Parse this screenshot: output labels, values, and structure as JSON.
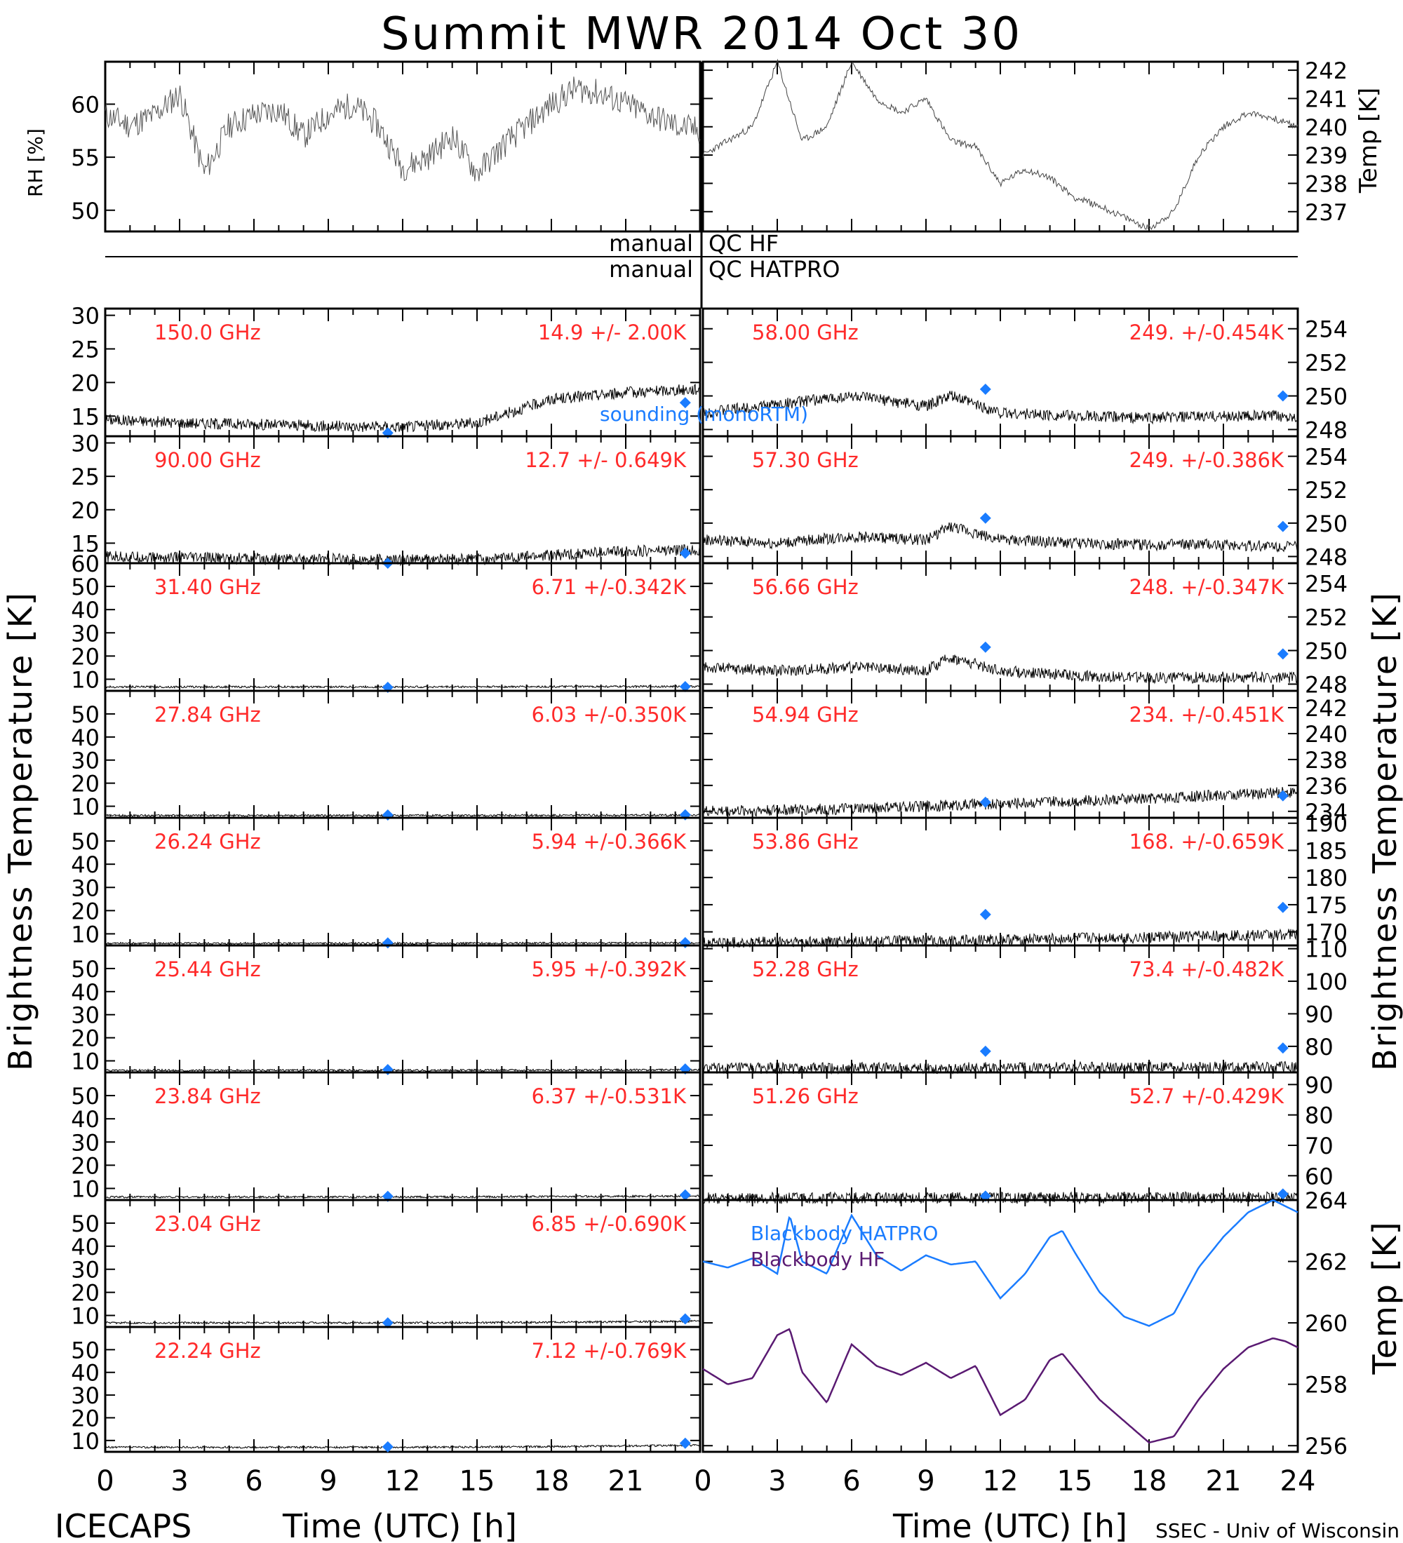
{
  "title": "Summit MWR 2014 Oct 30",
  "footer": {
    "left": "ICECAPS",
    "right": "SSEC - Univ of Wisconsin",
    "xlabel_left": "Time (UTC) [h]",
    "xlabel_right": "Time (UTC) [h]"
  },
  "side_labels": {
    "left_brightness": "Brightness Temperature [K]",
    "right_brightness": "Brightness Temperature [K]",
    "rh": "RH [%]",
    "temp": "Temp [K]",
    "bb_temp": "Temp [K]"
  },
  "qc": {
    "left1": "manual",
    "right1": "QC HF",
    "left2": "manual",
    "right2": "QC HATPRO"
  },
  "colors": {
    "channel_label": "#ff2a2a",
    "sounding": "#1a7cff",
    "hatpro": "#1a7cff",
    "hf": "#5a1a72",
    "trace": "#000000"
  },
  "legend": {
    "sounding": "sounding (monoRTM)",
    "bb_hatpro": "Blackbody HATPRO",
    "bb_hf": "Blackbody HF"
  },
  "chart_data": [
    {
      "type": "line",
      "panel": "rh",
      "ylabel": "RH [%]",
      "ylim": [
        48,
        64
      ],
      "yticks": [
        "50",
        "55",
        "60"
      ],
      "x": [
        0,
        1,
        2,
        3,
        4,
        5,
        6,
        7,
        8,
        9,
        10,
        11,
        12,
        13,
        14,
        15,
        16,
        17,
        18,
        19,
        20,
        21,
        22,
        23,
        24
      ],
      "values": [
        59,
        58,
        59,
        61,
        53.5,
        58,
        59,
        59.5,
        57,
        59,
        60,
        58,
        54,
        55,
        57,
        53.5,
        56,
        58,
        60,
        61.5,
        61,
        60,
        59,
        58,
        57.5
      ]
    },
    {
      "type": "line",
      "panel": "temp",
      "ylabel": "Temp [K]",
      "ylim": [
        236.3,
        242.3
      ],
      "yticks": [
        "237",
        "238",
        "239",
        "240",
        "241",
        "242"
      ],
      "x": [
        0,
        1,
        2,
        3,
        4,
        5,
        6,
        7,
        8,
        9,
        10,
        11,
        12,
        13,
        14,
        15,
        16,
        17,
        18,
        19,
        20,
        21,
        22,
        23,
        24
      ],
      "values": [
        239,
        239.5,
        240,
        242.3,
        239.5,
        240,
        242.3,
        241,
        240.5,
        241,
        239.5,
        239.3,
        238,
        238.5,
        238.2,
        237.5,
        237.2,
        236.8,
        236.4,
        237,
        239,
        240,
        240.5,
        240.3,
        240
      ]
    },
    {
      "type": "line",
      "side": "left",
      "channel": "150.0 GHz",
      "stat": "14.9 +/-  2.00K",
      "ylim": [
        12,
        31
      ],
      "yticks": [
        "15",
        "20",
        "25",
        "30"
      ],
      "x": [
        0,
        3,
        6,
        9,
        12,
        15,
        18,
        21,
        24
      ],
      "values": [
        14.5,
        14,
        13.8,
        13.5,
        13.4,
        14,
        17.5,
        18.5,
        19
      ],
      "sounding": [
        [
          11.4,
          12.5
        ],
        [
          23.4,
          17
        ]
      ]
    },
    {
      "type": "line",
      "side": "left",
      "channel": "90.00 GHz",
      "stat": "12.7 +/- 0.649K",
      "ylim": [
        12,
        31
      ],
      "yticks": [
        "15",
        "20",
        "25",
        "30"
      ],
      "x": [
        0,
        3,
        6,
        9,
        12,
        15,
        18,
        21,
        24
      ],
      "values": [
        13,
        12.8,
        12.7,
        12.6,
        12.5,
        12.6,
        13.2,
        13.8,
        14
      ],
      "sounding": [
        [
          11.4,
          12
        ],
        [
          23.4,
          13.5
        ]
      ]
    },
    {
      "type": "line",
      "side": "left",
      "channel": "31.40 GHz",
      "stat": "6.71 +/-0.342K",
      "ylim": [
        5,
        60
      ],
      "yticks": [
        "10",
        "20",
        "30",
        "40",
        "50",
        "60"
      ],
      "x": [
        0,
        6,
        12,
        18,
        24
      ],
      "values": [
        6.7,
        6.7,
        6.7,
        6.8,
        6.9
      ],
      "sounding": [
        [
          11.4,
          6.5
        ],
        [
          23.4,
          6.8
        ]
      ]
    },
    {
      "type": "line",
      "side": "left",
      "channel": "27.84 GHz",
      "stat": "6.03 +/-0.350K",
      "ylim": [
        5,
        60
      ],
      "yticks": [
        "10",
        "20",
        "30",
        "40",
        "50"
      ],
      "x": [
        0,
        6,
        12,
        18,
        24
      ],
      "values": [
        6,
        6,
        6,
        6.1,
        6.2
      ],
      "sounding": [
        [
          11.4,
          6.2
        ],
        [
          23.4,
          6.3
        ]
      ]
    },
    {
      "type": "line",
      "side": "left",
      "channel": "26.24 GHz",
      "stat": "5.94 +/-0.366K",
      "ylim": [
        5,
        60
      ],
      "yticks": [
        "10",
        "20",
        "30",
        "40",
        "50"
      ],
      "x": [
        0,
        6,
        12,
        18,
        24
      ],
      "values": [
        5.9,
        5.9,
        5.9,
        6,
        6.1
      ],
      "sounding": [
        [
          11.4,
          6.1
        ],
        [
          23.4,
          6.2
        ]
      ]
    },
    {
      "type": "line",
      "side": "left",
      "channel": "25.44 GHz",
      "stat": "5.95 +/-0.392K",
      "ylim": [
        5,
        60
      ],
      "yticks": [
        "10",
        "20",
        "30",
        "40",
        "50"
      ],
      "x": [
        0,
        6,
        12,
        18,
        24
      ],
      "values": [
        5.9,
        5.9,
        5.9,
        6,
        6.1
      ],
      "sounding": [
        [
          11.4,
          6.2
        ],
        [
          23.4,
          6.5
        ]
      ]
    },
    {
      "type": "line",
      "side": "left",
      "channel": "23.84 GHz",
      "stat": "6.37 +/-0.531K",
      "ylim": [
        5,
        60
      ],
      "yticks": [
        "10",
        "20",
        "30",
        "40",
        "50"
      ],
      "x": [
        0,
        6,
        12,
        18,
        24
      ],
      "values": [
        6.3,
        6.3,
        6.3,
        6.5,
        6.7
      ],
      "sounding": [
        [
          11.4,
          6.6
        ],
        [
          23.4,
          7.2
        ]
      ]
    },
    {
      "type": "line",
      "side": "left",
      "channel": "23.04 GHz",
      "stat": "6.85 +/-0.690K",
      "ylim": [
        5,
        60
      ],
      "yticks": [
        "10",
        "20",
        "30",
        "40",
        "50"
      ],
      "x": [
        0,
        6,
        12,
        18,
        24
      ],
      "values": [
        6.8,
        6.8,
        6.8,
        7,
        7.5
      ],
      "sounding": [
        [
          11.4,
          6.8
        ],
        [
          23.4,
          8.5
        ]
      ]
    },
    {
      "type": "line",
      "side": "left",
      "channel": "22.24 GHz",
      "stat": "7.12 +/-0.769K",
      "ylim": [
        5,
        60
      ],
      "yticks": [
        "10",
        "20",
        "30",
        "40",
        "50"
      ],
      "x": [
        0,
        6,
        12,
        18,
        24
      ],
      "values": [
        7,
        7,
        7,
        7.3,
        7.9
      ],
      "sounding": [
        [
          11.4,
          7.2
        ],
        [
          23.4,
          8.8
        ]
      ]
    },
    {
      "type": "line",
      "side": "right",
      "channel": "58.00 GHz",
      "stat": "249. +/-0.454K",
      "ylim": [
        247.6,
        255.2
      ],
      "yticks": [
        "248",
        "250",
        "252",
        "254"
      ],
      "x": [
        0,
        3,
        6,
        9,
        10,
        12,
        15,
        18,
        21,
        24
      ],
      "values": [
        249,
        249.5,
        250,
        249.4,
        250,
        249,
        248.8,
        248.7,
        248.8,
        248.8
      ],
      "sounding": [
        [
          11.4,
          250.4
        ],
        [
          23.4,
          250
        ]
      ]
    },
    {
      "type": "line",
      "side": "right",
      "channel": "57.30 GHz",
      "stat": "249. +/-0.386K",
      "ylim": [
        247.6,
        255.2
      ],
      "yticks": [
        "248",
        "250",
        "252",
        "254"
      ],
      "x": [
        0,
        3,
        6,
        9,
        10,
        12,
        15,
        18,
        21,
        24
      ],
      "values": [
        249,
        248.8,
        249.2,
        249,
        249.8,
        249,
        248.8,
        248.7,
        248.7,
        248.6
      ],
      "sounding": [
        [
          11.4,
          250.3
        ],
        [
          23.4,
          249.8
        ]
      ]
    },
    {
      "type": "line",
      "side": "right",
      "channel": "56.66 GHz",
      "stat": "248. +/-0.347K",
      "ylim": [
        247.6,
        255.2
      ],
      "yticks": [
        "248",
        "250",
        "252",
        "254"
      ],
      "x": [
        0,
        3,
        6,
        9,
        10,
        12,
        15,
        18,
        21,
        24
      ],
      "values": [
        249,
        248.8,
        249,
        248.8,
        249.6,
        248.8,
        248.5,
        248.4,
        248.4,
        248.4
      ],
      "sounding": [
        [
          11.4,
          250.2
        ],
        [
          23.4,
          249.8
        ]
      ]
    },
    {
      "type": "line",
      "side": "right",
      "channel": "54.94 GHz",
      "stat": "234. +/-0.451K",
      "ylim": [
        233.5,
        243.3
      ],
      "yticks": [
        "234",
        "236",
        "238",
        "240",
        "242"
      ],
      "x": [
        0,
        6,
        12,
        18,
        24
      ],
      "values": [
        234,
        234.2,
        234.6,
        235,
        235.5
      ],
      "sounding": [
        [
          11.4,
          234.7
        ],
        [
          23.4,
          235.2
        ]
      ]
    },
    {
      "type": "line",
      "side": "right",
      "channel": "53.86 GHz",
      "stat": "168. +/-0.659K",
      "ylim": [
        167.5,
        191
      ],
      "yticks": [
        "170",
        "175",
        "180",
        "185",
        "190"
      ],
      "x": [
        0,
        6,
        12,
        18,
        24
      ],
      "values": [
        168,
        168.2,
        168.5,
        169,
        169.5
      ],
      "sounding": [
        [
          11.4,
          173.2
        ],
        [
          23.4,
          174.5
        ]
      ]
    },
    {
      "type": "line",
      "side": "right",
      "channel": "52.28 GHz",
      "stat": "73.4 +/-0.482K",
      "ylim": [
        72,
        111
      ],
      "yticks": [
        "80",
        "90",
        "100",
        "110"
      ],
      "x": [
        0,
        6,
        12,
        18,
        24
      ],
      "values": [
        73.2,
        73.3,
        73.4,
        73.5,
        73.6
      ],
      "sounding": [
        [
          11.4,
          78.5
        ],
        [
          23.4,
          79.5
        ]
      ]
    },
    {
      "type": "line",
      "side": "right",
      "channel": "51.26 GHz",
      "stat": "52.7 +/-0.429K",
      "ylim": [
        52,
        94
      ],
      "yticks": [
        "60",
        "70",
        "80",
        "90"
      ],
      "x": [
        0,
        6,
        12,
        18,
        24
      ],
      "values": [
        52.6,
        52.7,
        52.7,
        52.8,
        52.9
      ],
      "sounding": [
        [
          11.4,
          53.3
        ],
        [
          23.4,
          54
        ]
      ]
    },
    {
      "type": "line",
      "panel": "blackbody",
      "ylabel": "Temp [K]",
      "ylim": [
        255.8,
        264
      ],
      "yticks": [
        "256",
        "258",
        "260",
        "262",
        "264"
      ],
      "series": [
        {
          "name": "Blackbody HATPRO",
          "x": [
            0,
            1,
            2,
            3,
            3.5,
            4,
            5,
            6,
            7,
            8,
            9,
            10,
            11,
            12,
            13,
            14,
            14.5,
            15,
            16,
            17,
            18,
            19,
            20,
            21,
            22,
            23,
            23.5,
            24
          ],
          "values": [
            262,
            261.8,
            262.1,
            261.6,
            263.5,
            262,
            261.6,
            263.5,
            262.2,
            261.7,
            262.2,
            261.9,
            262,
            260.8,
            261.6,
            262.8,
            263,
            262.3,
            261,
            260.2,
            259.9,
            260.3,
            261.8,
            262.8,
            263.6,
            264,
            263.8,
            263.6
          ]
        },
        {
          "name": "Blackbody HF",
          "x": [
            0,
            1,
            2,
            3,
            3.5,
            4,
            5,
            6,
            7,
            8,
            9,
            10,
            11,
            12,
            13,
            14,
            14.5,
            15,
            16,
            17,
            18,
            19,
            20,
            21,
            22,
            23,
            23.5,
            24
          ],
          "values": [
            258.5,
            258,
            258.2,
            259.6,
            259.8,
            258.4,
            257.4,
            259.3,
            258.6,
            258.3,
            258.7,
            258.2,
            258.6,
            257,
            257.5,
            258.8,
            259,
            258.5,
            257.5,
            256.8,
            256.1,
            256.3,
            257.5,
            258.5,
            259.2,
            259.5,
            259.4,
            259.2
          ]
        }
      ]
    }
  ],
  "xticks": [
    "0",
    "3",
    "6",
    "9",
    "12",
    "15",
    "18",
    "21"
  ],
  "xticks_right": [
    "0",
    "3",
    "6",
    "9",
    "12",
    "15",
    "18",
    "21",
    "24"
  ]
}
